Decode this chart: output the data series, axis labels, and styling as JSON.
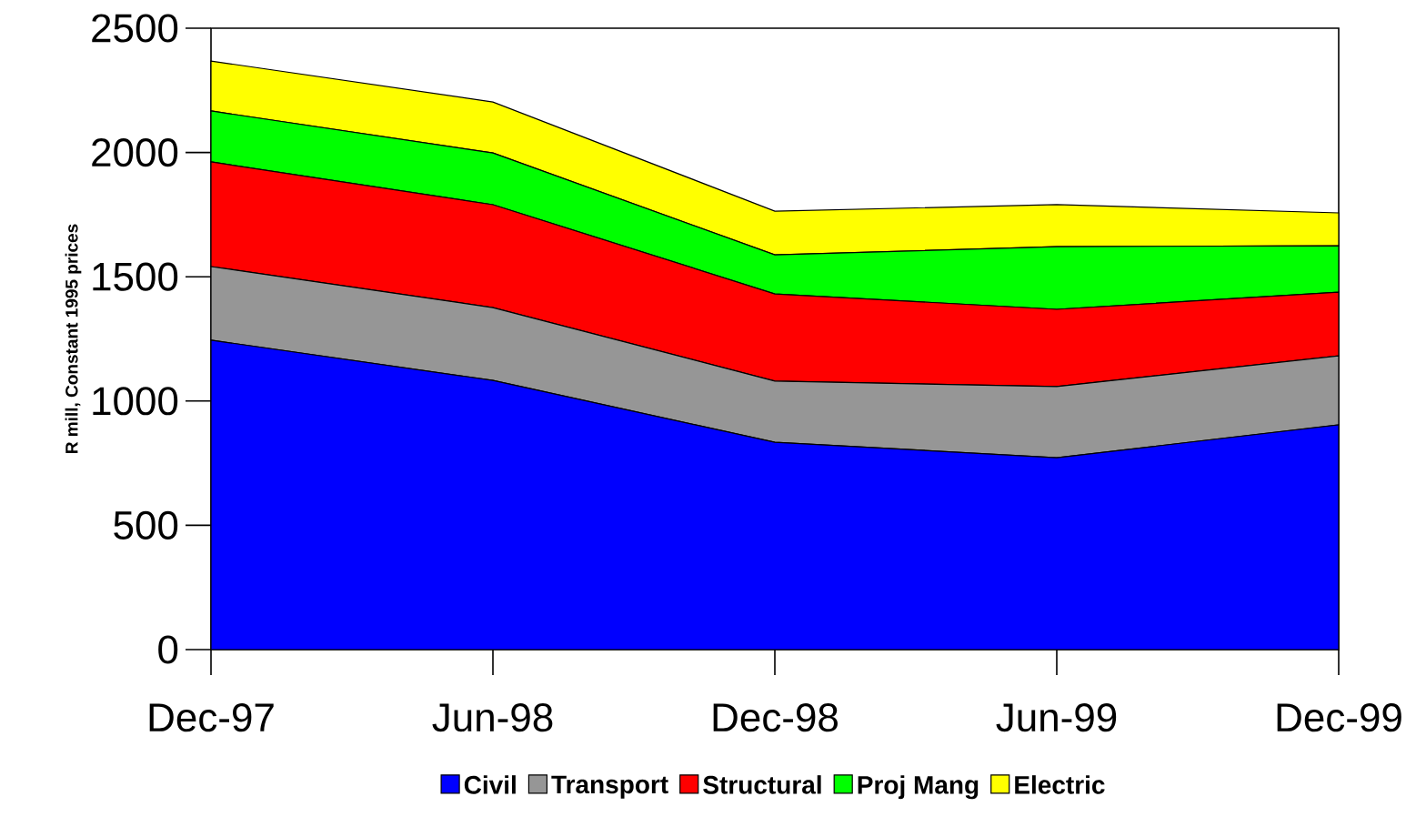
{
  "chart_data": {
    "type": "area",
    "stacked": true,
    "ylabel": "R mill, Constant 1995 prices",
    "categories": [
      "Dec-97",
      "Jun-98",
      "Dec-98",
      "Jun-99",
      "Dec-99"
    ],
    "series": [
      {
        "name": "Civil",
        "color": "#0000ff",
        "values": [
          1245,
          1083,
          834,
          772,
          904
        ]
      },
      {
        "name": "Transport",
        "color": "#969696",
        "values": [
          296,
          293,
          246,
          286,
          278
        ]
      },
      {
        "name": "Structural",
        "color": "#ff0000",
        "values": [
          421,
          414,
          351,
          311,
          256
        ]
      },
      {
        "name": "Proj Mang",
        "color": "#00ff00",
        "values": [
          205,
          208,
          157,
          252,
          187
        ]
      },
      {
        "name": "Electric",
        "color": "#ffff00",
        "values": [
          201,
          205,
          176,
          169,
          132
        ]
      }
    ],
    "ylim": [
      0,
      2500
    ],
    "yticks": [
      0,
      500,
      1000,
      1500,
      2000,
      2500
    ],
    "grid": false,
    "legend": "bottom"
  }
}
